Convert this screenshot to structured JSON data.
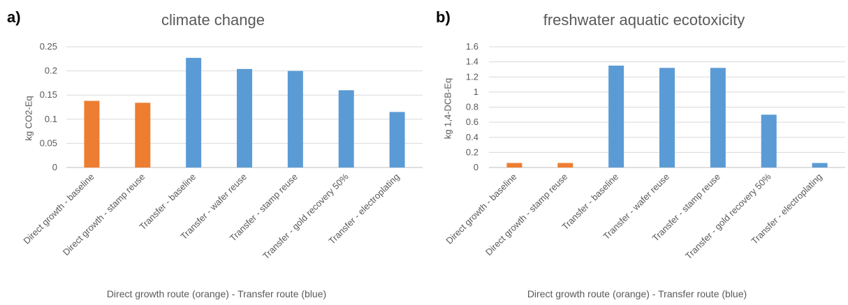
{
  "colors": {
    "orange": "#ed7d31",
    "blue": "#5b9bd5",
    "grid": "#d9d9d9"
  },
  "chart_data": [
    {
      "panel": "a)",
      "type": "bar",
      "title": "climate change",
      "ylabel": "kg CO2-Eq",
      "xlabel": "Direct growth route (orange) - Transfer route (blue)",
      "categories": [
        "Direct growth - baseline",
        "Direct growth - stamp reuse",
        "Transfer - baseline",
        "Transfer - wafer reuse",
        "Transfer - stamp reuse",
        "Transfer - gold recovery 50%",
        "Transfer - electroplating"
      ],
      "values": [
        0.138,
        0.134,
        0.227,
        0.204,
        0.2,
        0.16,
        0.115
      ],
      "bar_colors": [
        "orange",
        "orange",
        "blue",
        "blue",
        "blue",
        "blue",
        "blue"
      ],
      "ylim": [
        0,
        0.25
      ],
      "yticks": [
        "0",
        "0.05",
        "0.1",
        "0.15",
        "0.2",
        "0.25"
      ],
      "grid": true,
      "legend": "none"
    },
    {
      "panel": "b)",
      "type": "bar",
      "title": "freshwater aquatic ecotoxicity",
      "ylabel": "kg 1,4-DCB-Eq",
      "xlabel": "Direct growth route (orange) - Transfer route (blue)",
      "categories": [
        "Direct growth - baseline",
        "Direct growth - stamp reuse",
        "Transfer - baseline",
        "Transfer - wafer reuse",
        "Transfer - stamp reuse",
        "Transfer - gold recovery 50%",
        "Transfer - electroplating"
      ],
      "values": [
        0.06,
        0.06,
        1.35,
        1.32,
        1.32,
        0.7,
        0.06
      ],
      "bar_colors": [
        "orange",
        "orange",
        "blue",
        "blue",
        "blue",
        "blue",
        "blue"
      ],
      "ylim": [
        0,
        1.6
      ],
      "yticks": [
        "0",
        "0.2",
        "0.4",
        "0.6",
        "0.8",
        "1",
        "1.2",
        "1.4",
        "1.6"
      ],
      "grid": true,
      "legend": "none"
    }
  ]
}
